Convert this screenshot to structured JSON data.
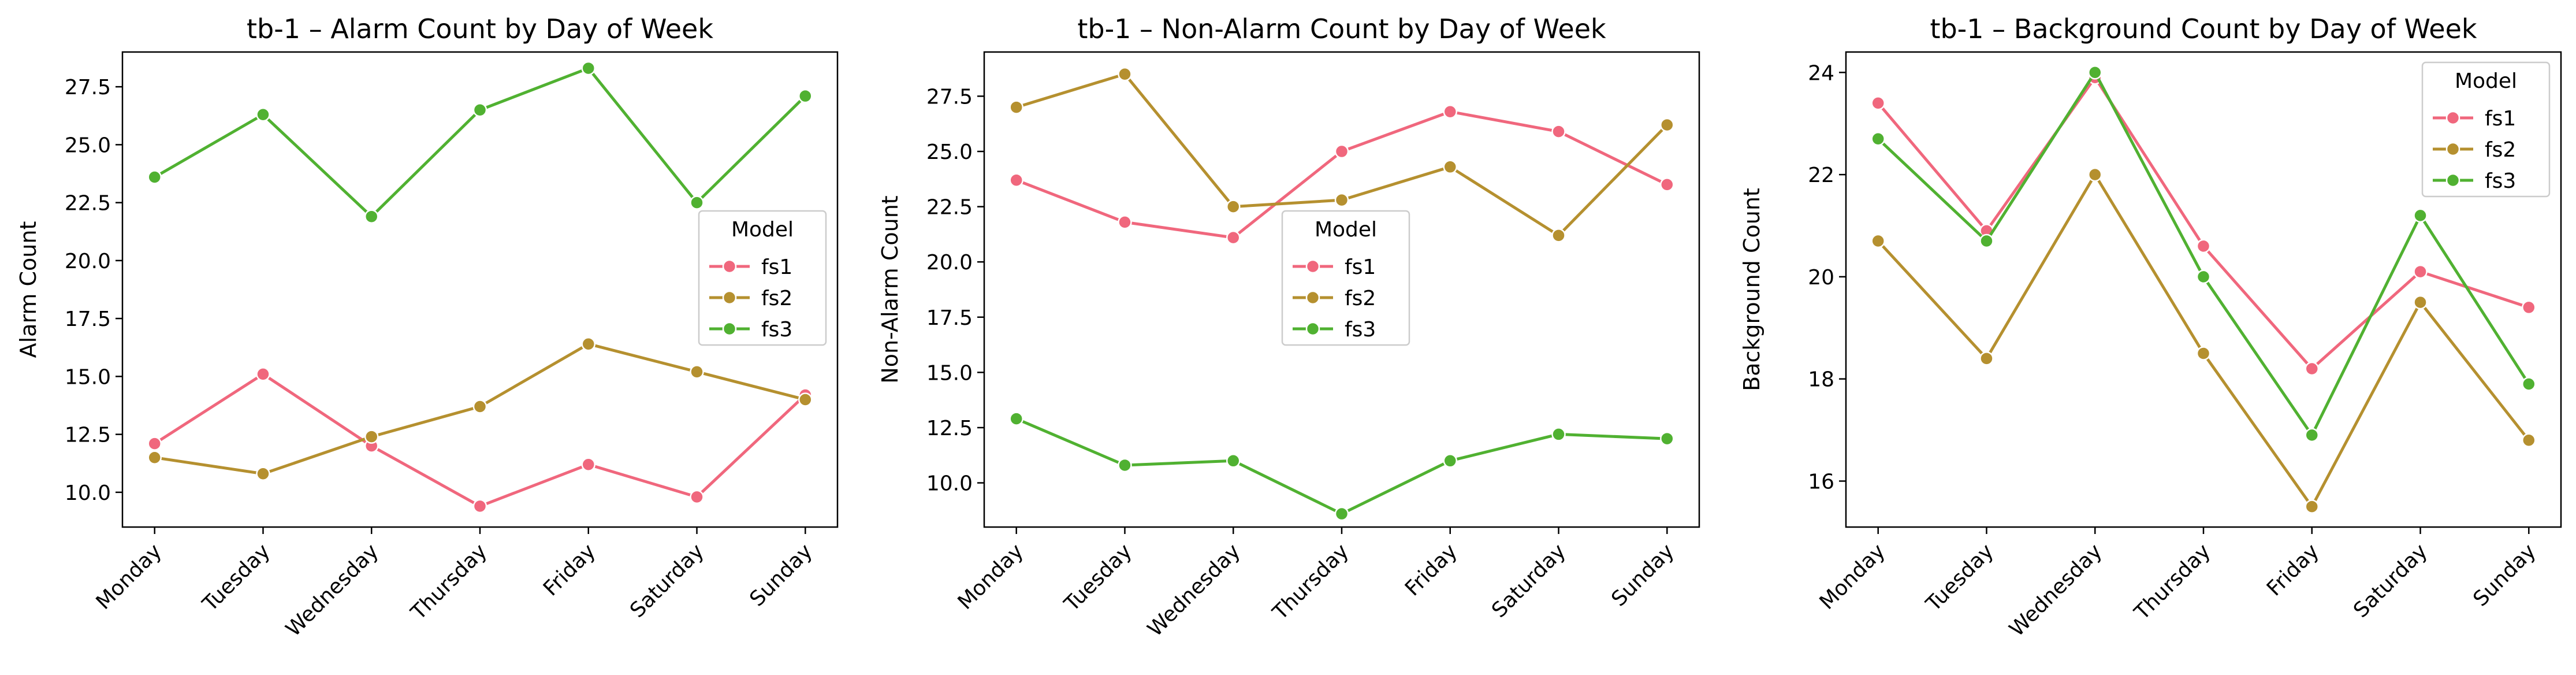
{
  "chart_data": [
    {
      "type": "line",
      "title": "tb-1 – Alarm Count by Day of Week",
      "xlabel": "",
      "ylabel": "Alarm Count",
      "categories": [
        "Monday",
        "Tuesday",
        "Wednesday",
        "Thursday",
        "Friday",
        "Saturday",
        "Sunday"
      ],
      "ylim": [
        8.5,
        29.0
      ],
      "yticks": [
        10.0,
        12.5,
        15.0,
        17.5,
        20.0,
        22.5,
        25.0,
        27.5
      ],
      "yticks_labels": [
        "10.0",
        "12.5",
        "15.0",
        "17.5",
        "20.0",
        "22.5",
        "25.0",
        "27.5"
      ],
      "grid": false,
      "legend": {
        "title": "Model",
        "placement": "center-right"
      },
      "series": [
        {
          "name": "fs1",
          "color": "#f0677d",
          "values": [
            12.1,
            15.1,
            12.0,
            9.4,
            11.2,
            9.8,
            14.2
          ]
        },
        {
          "name": "fs2",
          "color": "#b5902f",
          "values": [
            11.5,
            10.8,
            12.4,
            13.7,
            16.4,
            15.2,
            14.0
          ]
        },
        {
          "name": "fs3",
          "color": "#50b131",
          "values": [
            23.6,
            26.3,
            21.9,
            26.5,
            28.3,
            22.5,
            27.1
          ]
        }
      ]
    },
    {
      "type": "line",
      "title": "tb-1 – Non-Alarm Count by Day of Week",
      "xlabel": "",
      "ylabel": "Non-Alarm Count",
      "categories": [
        "Monday",
        "Tuesday",
        "Wednesday",
        "Thursday",
        "Friday",
        "Saturday",
        "Sunday"
      ],
      "ylim": [
        8.0,
        29.5
      ],
      "yticks": [
        10.0,
        12.5,
        15.0,
        17.5,
        20.0,
        22.5,
        25.0,
        27.5
      ],
      "yticks_labels": [
        "10.0",
        "12.5",
        "15.0",
        "17.5",
        "20.0",
        "22.5",
        "25.0",
        "27.5"
      ],
      "grid": false,
      "legend": {
        "title": "Model",
        "placement": "center"
      },
      "series": [
        {
          "name": "fs1",
          "color": "#f0677d",
          "values": [
            23.7,
            21.8,
            21.1,
            25.0,
            26.8,
            25.9,
            23.5
          ]
        },
        {
          "name": "fs2",
          "color": "#b5902f",
          "values": [
            27.0,
            28.5,
            22.5,
            22.8,
            24.3,
            21.2,
            26.2
          ]
        },
        {
          "name": "fs3",
          "color": "#50b131",
          "values": [
            12.9,
            10.8,
            11.0,
            8.6,
            11.0,
            12.2,
            12.0
          ]
        }
      ]
    },
    {
      "type": "line",
      "title": "tb-1 – Background Count by Day of Week",
      "xlabel": "",
      "ylabel": "Background Count",
      "categories": [
        "Monday",
        "Tuesday",
        "Wednesday",
        "Thursday",
        "Friday",
        "Saturday",
        "Sunday"
      ],
      "ylim": [
        15.1,
        24.4
      ],
      "yticks": [
        16,
        18,
        20,
        22,
        24
      ],
      "yticks_labels": [
        "16",
        "18",
        "20",
        "22",
        "24"
      ],
      "grid": false,
      "legend": {
        "title": "Model",
        "placement": "upper right"
      },
      "series": [
        {
          "name": "fs1",
          "color": "#f0677d",
          "values": [
            23.4,
            20.9,
            23.9,
            20.6,
            18.2,
            20.1,
            19.4
          ]
        },
        {
          "name": "fs2",
          "color": "#b5902f",
          "values": [
            20.7,
            18.4,
            22.0,
            18.5,
            15.5,
            19.5,
            16.8
          ]
        },
        {
          "name": "fs3",
          "color": "#50b131",
          "values": [
            22.7,
            20.7,
            24.0,
            20.0,
            16.9,
            21.2,
            17.9
          ]
        }
      ]
    }
  ]
}
